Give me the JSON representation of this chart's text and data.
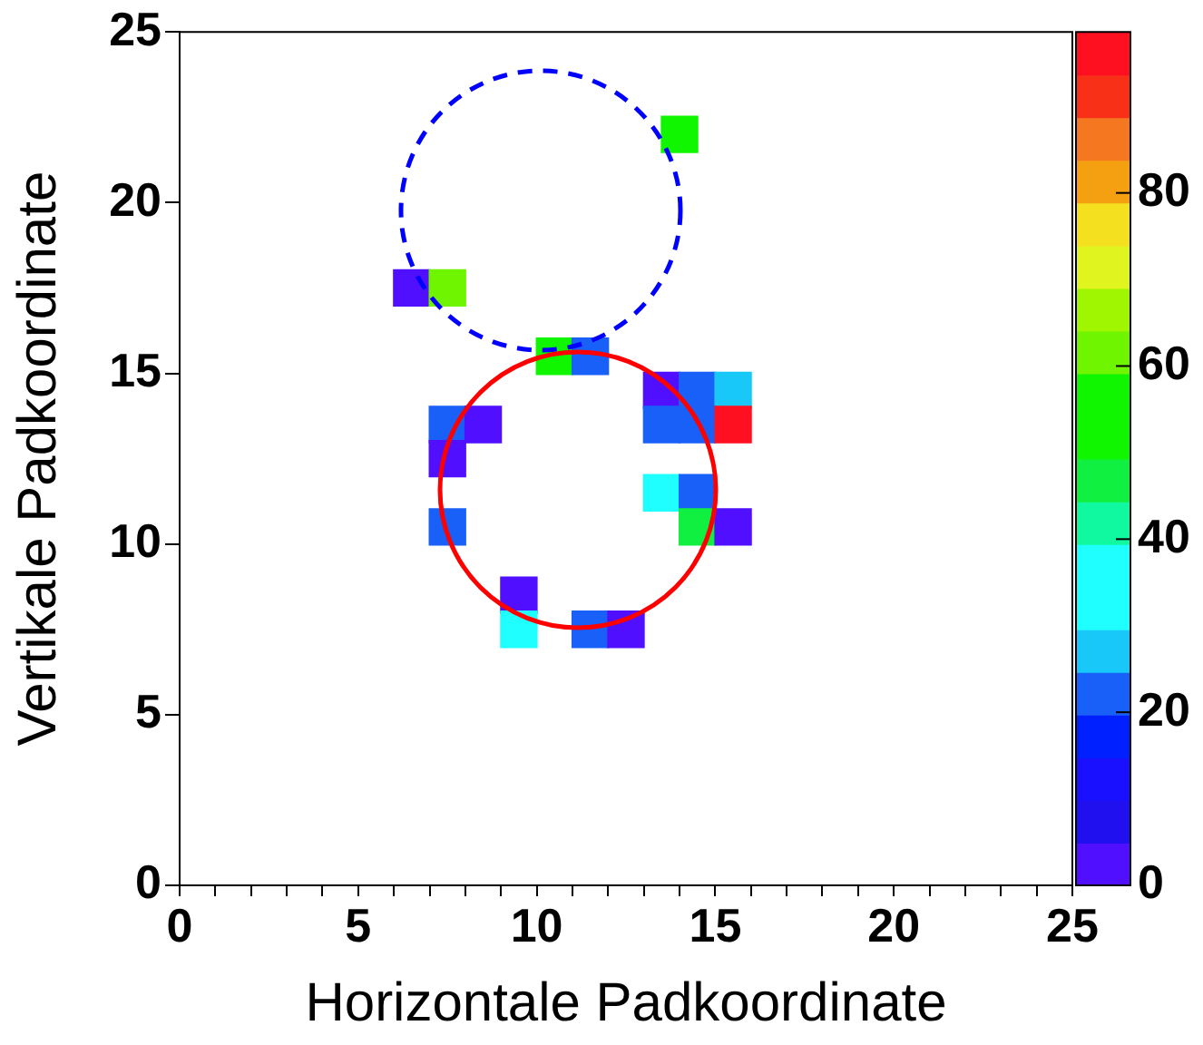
{
  "chart_data": {
    "type": "scatter",
    "xlabel": "Horizontale Padkoordinate",
    "ylabel": "Vertikale Padkoordinate",
    "xlim": [
      0,
      25
    ],
    "ylim": [
      0,
      25
    ],
    "xticks": [
      0,
      {
        "value": 1,
        "label": null
      },
      {
        "value": 2,
        "label": null
      },
      {
        "value": 3,
        "label": null
      },
      {
        "value": 4,
        "label": null
      },
      5,
      {
        "value": 6,
        "label": null
      },
      {
        "value": 7,
        "label": null
      },
      {
        "value": 8,
        "label": null
      },
      {
        "value": 9,
        "label": null
      },
      10,
      {
        "value": 11,
        "label": null
      },
      {
        "value": 12,
        "label": null
      },
      {
        "value": 13,
        "label": null
      },
      {
        "value": 14,
        "label": null
      },
      15,
      {
        "value": 16,
        "label": null
      },
      {
        "value": 17,
        "label": null
      },
      {
        "value": 18,
        "label": null
      },
      {
        "value": 19,
        "label": null
      },
      20,
      {
        "value": 21,
        "label": null
      },
      {
        "value": 22,
        "label": null
      },
      {
        "value": 23,
        "label": null
      },
      {
        "value": 24,
        "label": null
      },
      25
    ],
    "yticks": [
      0,
      5,
      10,
      15,
      20,
      25
    ],
    "clim": [
      0,
      98.6
    ],
    "cticks": [
      0,
      20,
      40,
      60,
      80
    ],
    "grid": false,
    "legend": false,
    "series": [
      {
        "type": "scatter",
        "marker": "square",
        "x": [
          14,
          6.5,
          7.5,
          10.5,
          11.5,
          13.5,
          14.5,
          15.5,
          13.5,
          14.5,
          15.5,
          7.5,
          8.5,
          7.5,
          13.5,
          14.5,
          14.5,
          15.5,
          7.5,
          9.5,
          9.5,
          11.5,
          12.5
        ],
        "values": [
          22,
          17.5,
          17.5,
          15.5,
          15.5,
          14.5,
          14.5,
          14.5,
          13.5,
          13.5,
          13.5,
          13.5,
          13.5,
          12.5,
          11.5,
          11.5,
          10.5,
          10.5,
          10.5,
          8.5,
          7.5,
          7.5,
          7.5
        ],
        "cvalues": [
          52,
          2,
          62,
          50,
          22,
          2,
          22,
          27,
          22,
          22,
          96,
          22,
          2,
          2,
          33,
          22,
          46,
          2,
          22,
          2,
          33,
          22,
          2
        ],
        "colors": [
          "#10f500",
          "#5010ff",
          "#70f500",
          "#10f500",
          "#1860f8",
          "#5010ff",
          "#1860f8",
          "#18c8f8",
          "#1860f8",
          "#1860f8",
          "#ff1020",
          "#1860f8",
          "#5010ff",
          "#5010ff",
          "#20ffff",
          "#1860f8",
          "#10f040",
          "#5010ff",
          "#1860f8",
          "#5010ff",
          "#20ffff",
          "#1860f8",
          "#5010ff"
        ]
      }
    ]
  }
}
